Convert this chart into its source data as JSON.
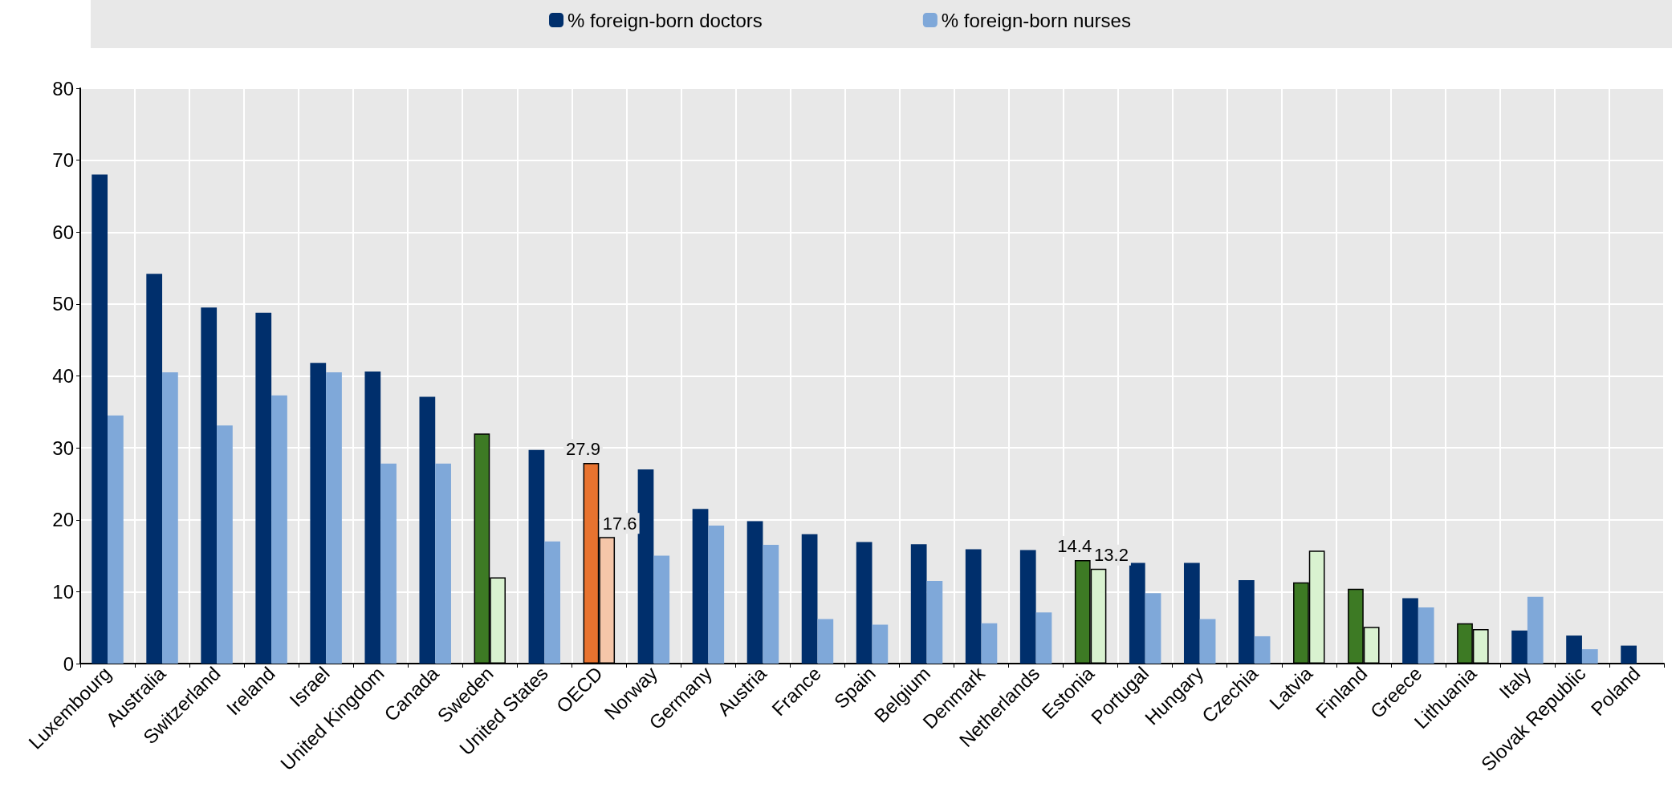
{
  "chart_data": {
    "type": "bar",
    "categories": [
      "Luxembourg",
      "Australia",
      "Switzerland",
      "Ireland",
      "Israel",
      "United Kingdom",
      "Canada",
      "Sweden",
      "United States",
      "OECD",
      "Norway",
      "Germany",
      "Austria",
      "France",
      "Spain",
      "Belgium",
      "Denmark",
      "Netherlands",
      "Estonia",
      "Portugal",
      "Hungary",
      "Czechia",
      "Latvia",
      "Finland",
      "Greece",
      "Lithuania",
      "Italy",
      "Slovak Republic",
      "Poland"
    ],
    "series": [
      {
        "name": "% foreign-born doctors",
        "color": "#002f6c",
        "values": [
          68,
          54.2,
          49.5,
          48.8,
          41.8,
          40.6,
          37.1,
          32.0,
          29.7,
          27.9,
          27.0,
          21.5,
          19.8,
          18.0,
          16.9,
          16.6,
          15.9,
          15.8,
          14.4,
          14.0,
          14.0,
          11.6,
          11.3,
          10.4,
          9.1,
          5.6,
          4.6,
          3.9,
          2.5
        ],
        "colors": [
          "#002f6c",
          "#002f6c",
          "#002f6c",
          "#002f6c",
          "#002f6c",
          "#002f6c",
          "#002f6c",
          "#3d7a24",
          "#002f6c",
          "#e8732f",
          "#002f6c",
          "#002f6c",
          "#002f6c",
          "#002f6c",
          "#002f6c",
          "#002f6c",
          "#002f6c",
          "#002f6c",
          "#3d7a24",
          "#002f6c",
          "#002f6c",
          "#002f6c",
          "#3d7a24",
          "#3d7a24",
          "#002f6c",
          "#3d7a24",
          "#002f6c",
          "#002f6c",
          "#002f6c"
        ],
        "value_labels": [
          null,
          null,
          null,
          null,
          null,
          null,
          null,
          null,
          null,
          "27.9",
          null,
          null,
          null,
          null,
          null,
          null,
          null,
          null,
          "14.4",
          null,
          null,
          null,
          null,
          null,
          null,
          null,
          null,
          null,
          null
        ]
      },
      {
        "name": "% foreign-born nurses",
        "color": "#7fa8d9",
        "values": [
          34.5,
          40.5,
          33.1,
          37.3,
          40.5,
          27.8,
          27.8,
          12.0,
          17.0,
          17.6,
          15.0,
          19.2,
          16.5,
          6.2,
          5.4,
          11.5,
          5.6,
          7.1,
          13.2,
          9.8,
          6.2,
          3.8,
          15.7,
          5.1,
          7.8,
          4.8,
          9.3,
          2.0,
          null
        ],
        "colors": [
          "#7fa8d9",
          "#7fa8d9",
          "#7fa8d9",
          "#7fa8d9",
          "#7fa8d9",
          "#7fa8d9",
          "#7fa8d9",
          "#d9f2d0",
          "#7fa8d9",
          "#f5c6a9",
          "#7fa8d9",
          "#7fa8d9",
          "#7fa8d9",
          "#7fa8d9",
          "#7fa8d9",
          "#7fa8d9",
          "#7fa8d9",
          "#7fa8d9",
          "#d9f2d0",
          "#7fa8d9",
          "#7fa8d9",
          "#7fa8d9",
          "#d9f2d0",
          "#d9f2d0",
          "#7fa8d9",
          "#d9f2d0",
          "#7fa8d9",
          "#7fa8d9",
          "#7fa8d9"
        ],
        "value_labels": [
          null,
          null,
          null,
          null,
          null,
          null,
          null,
          null,
          null,
          "17.6",
          null,
          null,
          null,
          null,
          null,
          null,
          null,
          null,
          "13.2",
          null,
          null,
          null,
          null,
          null,
          null,
          null,
          null,
          null,
          null
        ]
      }
    ],
    "ylim": [
      0,
      80
    ],
    "yticks": [
      0,
      10,
      20,
      30,
      40,
      50,
      60,
      70,
      80
    ],
    "grid": true,
    "legend": "top"
  }
}
